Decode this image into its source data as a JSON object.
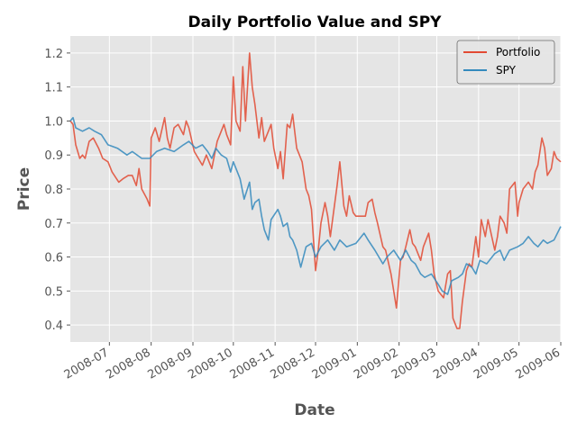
{
  "chart_data": {
    "type": "line",
    "title": "Daily Portfolio Value and SPY",
    "xlabel": "Date",
    "ylabel": "Price",
    "xlim": [
      "2008-06-02",
      "2009-06-01"
    ],
    "ylim": [
      0.35,
      1.25
    ],
    "x_tick_labels": [
      "2008-07",
      "2008-08",
      "2008-09",
      "2008-10",
      "2008-11",
      "2008-12",
      "2009-01",
      "2009-02",
      "2009-03",
      "2009-04",
      "2009-05",
      "2009-06"
    ],
    "y_ticks": [
      0.4,
      0.5,
      0.6,
      0.7,
      0.8,
      0.9,
      1.0,
      1.1,
      1.2
    ],
    "y_tick_labels": [
      "0.4",
      "0.5",
      "0.6",
      "0.7",
      "0.8",
      "0.9",
      "1.0",
      "1.1",
      "1.2"
    ],
    "grid": true,
    "legend_position": "top-right",
    "series": [
      {
        "name": "Portfolio",
        "color": "#E24A33",
        "points": [
          [
            "2008-06-02",
            1.0
          ],
          [
            "2008-06-04",
            0.99
          ],
          [
            "2008-06-06",
            0.93
          ],
          [
            "2008-06-09",
            0.89
          ],
          [
            "2008-06-11",
            0.9
          ],
          [
            "2008-06-13",
            0.89
          ],
          [
            "2008-06-16",
            0.94
          ],
          [
            "2008-06-19",
            0.95
          ],
          [
            "2008-06-23",
            0.92
          ],
          [
            "2008-06-26",
            0.89
          ],
          [
            "2008-06-30",
            0.88
          ],
          [
            "2008-07-03",
            0.85
          ],
          [
            "2008-07-08",
            0.82
          ],
          [
            "2008-07-11",
            0.83
          ],
          [
            "2008-07-15",
            0.84
          ],
          [
            "2008-07-18",
            0.84
          ],
          [
            "2008-07-21",
            0.81
          ],
          [
            "2008-07-23",
            0.86
          ],
          [
            "2008-07-25",
            0.8
          ],
          [
            "2008-07-29",
            0.77
          ],
          [
            "2008-07-31",
            0.75
          ],
          [
            "2008-08-01",
            0.95
          ],
          [
            "2008-08-04",
            0.98
          ],
          [
            "2008-08-07",
            0.94
          ],
          [
            "2008-08-11",
            1.01
          ],
          [
            "2008-08-13",
            0.95
          ],
          [
            "2008-08-15",
            0.92
          ],
          [
            "2008-08-18",
            0.98
          ],
          [
            "2008-08-21",
            0.99
          ],
          [
            "2008-08-25",
            0.96
          ],
          [
            "2008-08-27",
            1.0
          ],
          [
            "2008-08-29",
            0.98
          ],
          [
            "2008-09-02",
            0.91
          ],
          [
            "2008-09-05",
            0.89
          ],
          [
            "2008-09-08",
            0.87
          ],
          [
            "2008-09-11",
            0.9
          ],
          [
            "2008-09-15",
            0.86
          ],
          [
            "2008-09-17",
            0.9
          ],
          [
            "2008-09-19",
            0.94
          ],
          [
            "2008-09-22",
            0.97
          ],
          [
            "2008-09-24",
            0.99
          ],
          [
            "2008-09-26",
            0.96
          ],
          [
            "2008-09-29",
            0.93
          ],
          [
            "2008-10-01",
            1.13
          ],
          [
            "2008-10-03",
            1.0
          ],
          [
            "2008-10-06",
            0.97
          ],
          [
            "2008-10-08",
            1.16
          ],
          [
            "2008-10-10",
            1.0
          ],
          [
            "2008-10-13",
            1.2
          ],
          [
            "2008-10-15",
            1.1
          ],
          [
            "2008-10-17",
            1.05
          ],
          [
            "2008-10-20",
            0.95
          ],
          [
            "2008-10-22",
            1.01
          ],
          [
            "2008-10-24",
            0.94
          ],
          [
            "2008-10-27",
            0.97
          ],
          [
            "2008-10-29",
            0.99
          ],
          [
            "2008-10-31",
            0.92
          ],
          [
            "2008-11-03",
            0.86
          ],
          [
            "2008-11-05",
            0.91
          ],
          [
            "2008-11-07",
            0.83
          ],
          [
            "2008-11-10",
            0.99
          ],
          [
            "2008-11-12",
            0.98
          ],
          [
            "2008-11-14",
            1.02
          ],
          [
            "2008-11-17",
            0.92
          ],
          [
            "2008-11-19",
            0.9
          ],
          [
            "2008-11-21",
            0.88
          ],
          [
            "2008-11-24",
            0.8
          ],
          [
            "2008-11-26",
            0.78
          ],
          [
            "2008-11-28",
            0.74
          ],
          [
            "2008-12-01",
            0.56
          ],
          [
            "2008-12-03",
            0.62
          ],
          [
            "2008-12-05",
            0.7
          ],
          [
            "2008-12-08",
            0.76
          ],
          [
            "2008-12-10",
            0.72
          ],
          [
            "2008-12-12",
            0.66
          ],
          [
            "2008-12-15",
            0.75
          ],
          [
            "2008-12-17",
            0.81
          ],
          [
            "2008-12-19",
            0.88
          ],
          [
            "2008-12-22",
            0.75
          ],
          [
            "2008-12-24",
            0.72
          ],
          [
            "2008-12-26",
            0.78
          ],
          [
            "2008-12-29",
            0.73
          ],
          [
            "2008-12-31",
            0.72
          ],
          [
            "2009-01-05",
            0.72
          ],
          [
            "2009-01-07",
            0.72
          ],
          [
            "2009-01-09",
            0.76
          ],
          [
            "2009-01-12",
            0.77
          ],
          [
            "2009-01-14",
            0.73
          ],
          [
            "2009-01-16",
            0.7
          ],
          [
            "2009-01-20",
            0.63
          ],
          [
            "2009-01-22",
            0.62
          ],
          [
            "2009-01-26",
            0.55
          ],
          [
            "2009-01-28",
            0.5
          ],
          [
            "2009-01-30",
            0.45
          ],
          [
            "2009-02-02",
            0.59
          ],
          [
            "2009-02-04",
            0.6
          ],
          [
            "2009-02-06",
            0.63
          ],
          [
            "2009-02-09",
            0.68
          ],
          [
            "2009-02-11",
            0.64
          ],
          [
            "2009-02-13",
            0.63
          ],
          [
            "2009-02-17",
            0.59
          ],
          [
            "2009-02-19",
            0.63
          ],
          [
            "2009-02-23",
            0.67
          ],
          [
            "2009-02-25",
            0.62
          ],
          [
            "2009-02-27",
            0.55
          ],
          [
            "2009-03-02",
            0.5
          ],
          [
            "2009-03-04",
            0.49
          ],
          [
            "2009-03-06",
            0.48
          ],
          [
            "2009-03-09",
            0.55
          ],
          [
            "2009-03-11",
            0.56
          ],
          [
            "2009-03-13",
            0.42
          ],
          [
            "2009-03-16",
            0.39
          ],
          [
            "2009-03-18",
            0.39
          ],
          [
            "2009-03-20",
            0.47
          ],
          [
            "2009-03-23",
            0.56
          ],
          [
            "2009-03-25",
            0.58
          ],
          [
            "2009-03-27",
            0.57
          ],
          [
            "2009-03-30",
            0.66
          ],
          [
            "2009-04-01",
            0.6
          ],
          [
            "2009-04-03",
            0.71
          ],
          [
            "2009-04-06",
            0.66
          ],
          [
            "2009-04-08",
            0.71
          ],
          [
            "2009-04-13",
            0.62
          ],
          [
            "2009-04-15",
            0.66
          ],
          [
            "2009-04-17",
            0.72
          ],
          [
            "2009-04-20",
            0.7
          ],
          [
            "2009-04-22",
            0.67
          ],
          [
            "2009-04-24",
            0.8
          ],
          [
            "2009-04-28",
            0.82
          ],
          [
            "2009-04-30",
            0.72
          ],
          [
            "2009-05-01",
            0.76
          ],
          [
            "2009-05-04",
            0.8
          ],
          [
            "2009-05-06",
            0.81
          ],
          [
            "2009-05-08",
            0.82
          ],
          [
            "2009-05-11",
            0.8
          ],
          [
            "2009-05-13",
            0.85
          ],
          [
            "2009-05-15",
            0.87
          ],
          [
            "2009-05-18",
            0.95
          ],
          [
            "2009-05-20",
            0.92
          ],
          [
            "2009-05-22",
            0.84
          ],
          [
            "2009-05-25",
            0.86
          ],
          [
            "2009-05-27",
            0.91
          ],
          [
            "2009-05-29",
            0.89
          ],
          [
            "2009-06-01",
            0.88
          ]
        ]
      },
      {
        "name": "SPY",
        "color": "#348ABD",
        "points": [
          [
            "2008-06-02",
            1.0
          ],
          [
            "2008-06-04",
            1.01
          ],
          [
            "2008-06-06",
            0.98
          ],
          [
            "2008-06-11",
            0.97
          ],
          [
            "2008-06-16",
            0.98
          ],
          [
            "2008-06-20",
            0.97
          ],
          [
            "2008-06-25",
            0.96
          ],
          [
            "2008-06-30",
            0.93
          ],
          [
            "2008-07-07",
            0.92
          ],
          [
            "2008-07-14",
            0.9
          ],
          [
            "2008-07-18",
            0.91
          ],
          [
            "2008-07-25",
            0.89
          ],
          [
            "2008-07-31",
            0.89
          ],
          [
            "2008-08-05",
            0.91
          ],
          [
            "2008-08-11",
            0.92
          ],
          [
            "2008-08-18",
            0.91
          ],
          [
            "2008-08-25",
            0.93
          ],
          [
            "2008-08-29",
            0.94
          ],
          [
            "2008-09-03",
            0.92
          ],
          [
            "2008-09-08",
            0.93
          ],
          [
            "2008-09-12",
            0.91
          ],
          [
            "2008-09-15",
            0.89
          ],
          [
            "2008-09-18",
            0.92
          ],
          [
            "2008-09-22",
            0.9
          ],
          [
            "2008-09-26",
            0.89
          ],
          [
            "2008-09-29",
            0.85
          ],
          [
            "2008-10-01",
            0.88
          ],
          [
            "2008-10-03",
            0.86
          ],
          [
            "2008-10-06",
            0.83
          ],
          [
            "2008-10-09",
            0.77
          ],
          [
            "2008-10-13",
            0.82
          ],
          [
            "2008-10-15",
            0.74
          ],
          [
            "2008-10-17",
            0.76
          ],
          [
            "2008-10-20",
            0.77
          ],
          [
            "2008-10-22",
            0.72
          ],
          [
            "2008-10-24",
            0.68
          ],
          [
            "2008-10-27",
            0.65
          ],
          [
            "2008-10-29",
            0.71
          ],
          [
            "2008-11-03",
            0.74
          ],
          [
            "2008-11-05",
            0.72
          ],
          [
            "2008-11-07",
            0.69
          ],
          [
            "2008-11-10",
            0.7
          ],
          [
            "2008-11-12",
            0.66
          ],
          [
            "2008-11-14",
            0.65
          ],
          [
            "2008-11-17",
            0.62
          ],
          [
            "2008-11-20",
            0.57
          ],
          [
            "2008-11-24",
            0.63
          ],
          [
            "2008-11-28",
            0.64
          ],
          [
            "2008-12-01",
            0.6
          ],
          [
            "2008-12-05",
            0.63
          ],
          [
            "2008-12-10",
            0.65
          ],
          [
            "2008-12-15",
            0.62
          ],
          [
            "2008-12-19",
            0.65
          ],
          [
            "2008-12-24",
            0.63
          ],
          [
            "2008-12-31",
            0.64
          ],
          [
            "2009-01-06",
            0.67
          ],
          [
            "2009-01-09",
            0.65
          ],
          [
            "2009-01-14",
            0.62
          ],
          [
            "2009-01-20",
            0.58
          ],
          [
            "2009-01-23",
            0.6
          ],
          [
            "2009-01-28",
            0.62
          ],
          [
            "2009-02-02",
            0.59
          ],
          [
            "2009-02-06",
            0.62
          ],
          [
            "2009-02-10",
            0.59
          ],
          [
            "2009-02-13",
            0.58
          ],
          [
            "2009-02-17",
            0.55
          ],
          [
            "2009-02-20",
            0.54
          ],
          [
            "2009-02-25",
            0.55
          ],
          [
            "2009-03-02",
            0.52
          ],
          [
            "2009-03-05",
            0.5
          ],
          [
            "2009-03-09",
            0.49
          ],
          [
            "2009-03-12",
            0.53
          ],
          [
            "2009-03-17",
            0.54
          ],
          [
            "2009-03-20",
            0.55
          ],
          [
            "2009-03-23",
            0.58
          ],
          [
            "2009-03-27",
            0.57
          ],
          [
            "2009-03-30",
            0.55
          ],
          [
            "2009-04-02",
            0.59
          ],
          [
            "2009-04-07",
            0.58
          ],
          [
            "2009-04-13",
            0.61
          ],
          [
            "2009-04-17",
            0.62
          ],
          [
            "2009-04-20",
            0.59
          ],
          [
            "2009-04-24",
            0.62
          ],
          [
            "2009-04-30",
            0.63
          ],
          [
            "2009-05-04",
            0.64
          ],
          [
            "2009-05-08",
            0.66
          ],
          [
            "2009-05-12",
            0.64
          ],
          [
            "2009-05-15",
            0.63
          ],
          [
            "2009-05-19",
            0.65
          ],
          [
            "2009-05-22",
            0.64
          ],
          [
            "2009-05-27",
            0.65
          ],
          [
            "2009-06-01",
            0.69
          ]
        ]
      }
    ]
  }
}
